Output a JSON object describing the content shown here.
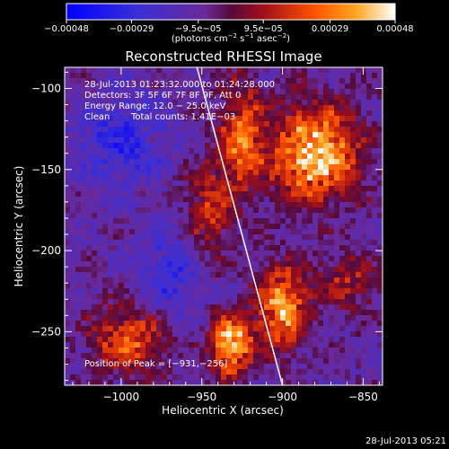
{
  "chart_data": {
    "type": "heatmap",
    "title": "Reconstructed RHESSI Image",
    "xlabel": "Heliocentric X (arcsec)",
    "ylabel": "Heliocentric Y (arcsec)",
    "xlim": [
      -1035,
      -838
    ],
    "ylim": [
      -283,
      -87
    ],
    "x_ticks": [
      -1000,
      -950,
      -900,
      -850
    ],
    "y_ticks": [
      -100,
      -150,
      -200,
      -250
    ],
    "x_tick_labels": [
      "−1000",
      "−950",
      "−900",
      "−850"
    ],
    "y_tick_labels": [
      "−100",
      "−150",
      "−200",
      "−250"
    ],
    "colorbar": {
      "range": [
        -0.00048,
        0.00048
      ],
      "tick_values": [
        -0.00048,
        -0.00029,
        -9.5e-05,
        9.5e-05,
        0.00029,
        0.00048
      ],
      "tick_labels": [
        "−0.00048",
        "−0.00029",
        "−9.5e−05",
        "9.5e−05",
        "0.00029",
        "0.00048"
      ],
      "unit_prefix": "(photons cm",
      "unit_exp1": "−2",
      "unit_mid": " s",
      "unit_exp2": "−1",
      "unit_after": " asec",
      "unit_exp3": "−2",
      "unit_suffix": ")"
    },
    "annotations": {
      "line1": "28‐Jul‐2013 01:23:32.000 to 01:24:28.000",
      "line2": "Detectors: 3F 5F 6F 7F 8F 9F, Att 0",
      "line3": "Energy Range: 12.0 − 25.0 keV",
      "line4_left": "Clean",
      "line4_right": "Total counts: 1.41E−03",
      "peak": "Position of Peak = [−931,−256]"
    },
    "limb_line": [
      [
        -953,
        -87
      ],
      [
        -900,
        -283
      ]
    ],
    "hot_regions": [
      {
        "x": -880,
        "y": -140,
        "sx": 18,
        "sy": 20,
        "amp": 1.0
      },
      {
        "x": -925,
        "y": -130,
        "sx": 9,
        "sy": 22,
        "amp": 0.7
      },
      {
        "x": -900,
        "y": -235,
        "sx": 11,
        "sy": 17,
        "amp": 0.85
      },
      {
        "x": -932,
        "y": -258,
        "sx": 9,
        "sy": 13,
        "amp": 0.95
      },
      {
        "x": -995,
        "y": -255,
        "sx": 16,
        "sy": 16,
        "amp": 0.55
      },
      {
        "x": -945,
        "y": -175,
        "sx": 10,
        "sy": 22,
        "amp": 0.45
      },
      {
        "x": -860,
        "y": -220,
        "sx": 14,
        "sy": 12,
        "amp": 0.35
      }
    ],
    "cold_regions": [
      {
        "x": -1000,
        "y": -130,
        "sx": 20,
        "sy": 20,
        "amp": 0.6
      },
      {
        "x": -970,
        "y": -215,
        "sx": 16,
        "sy": 18,
        "amp": 0.55
      }
    ],
    "colors": {
      "background": "#000000",
      "text": "#ffffff",
      "limb": "#ffffff"
    }
  },
  "footer": {
    "timestamp": "28‐Jul‐2013 05:21"
  }
}
